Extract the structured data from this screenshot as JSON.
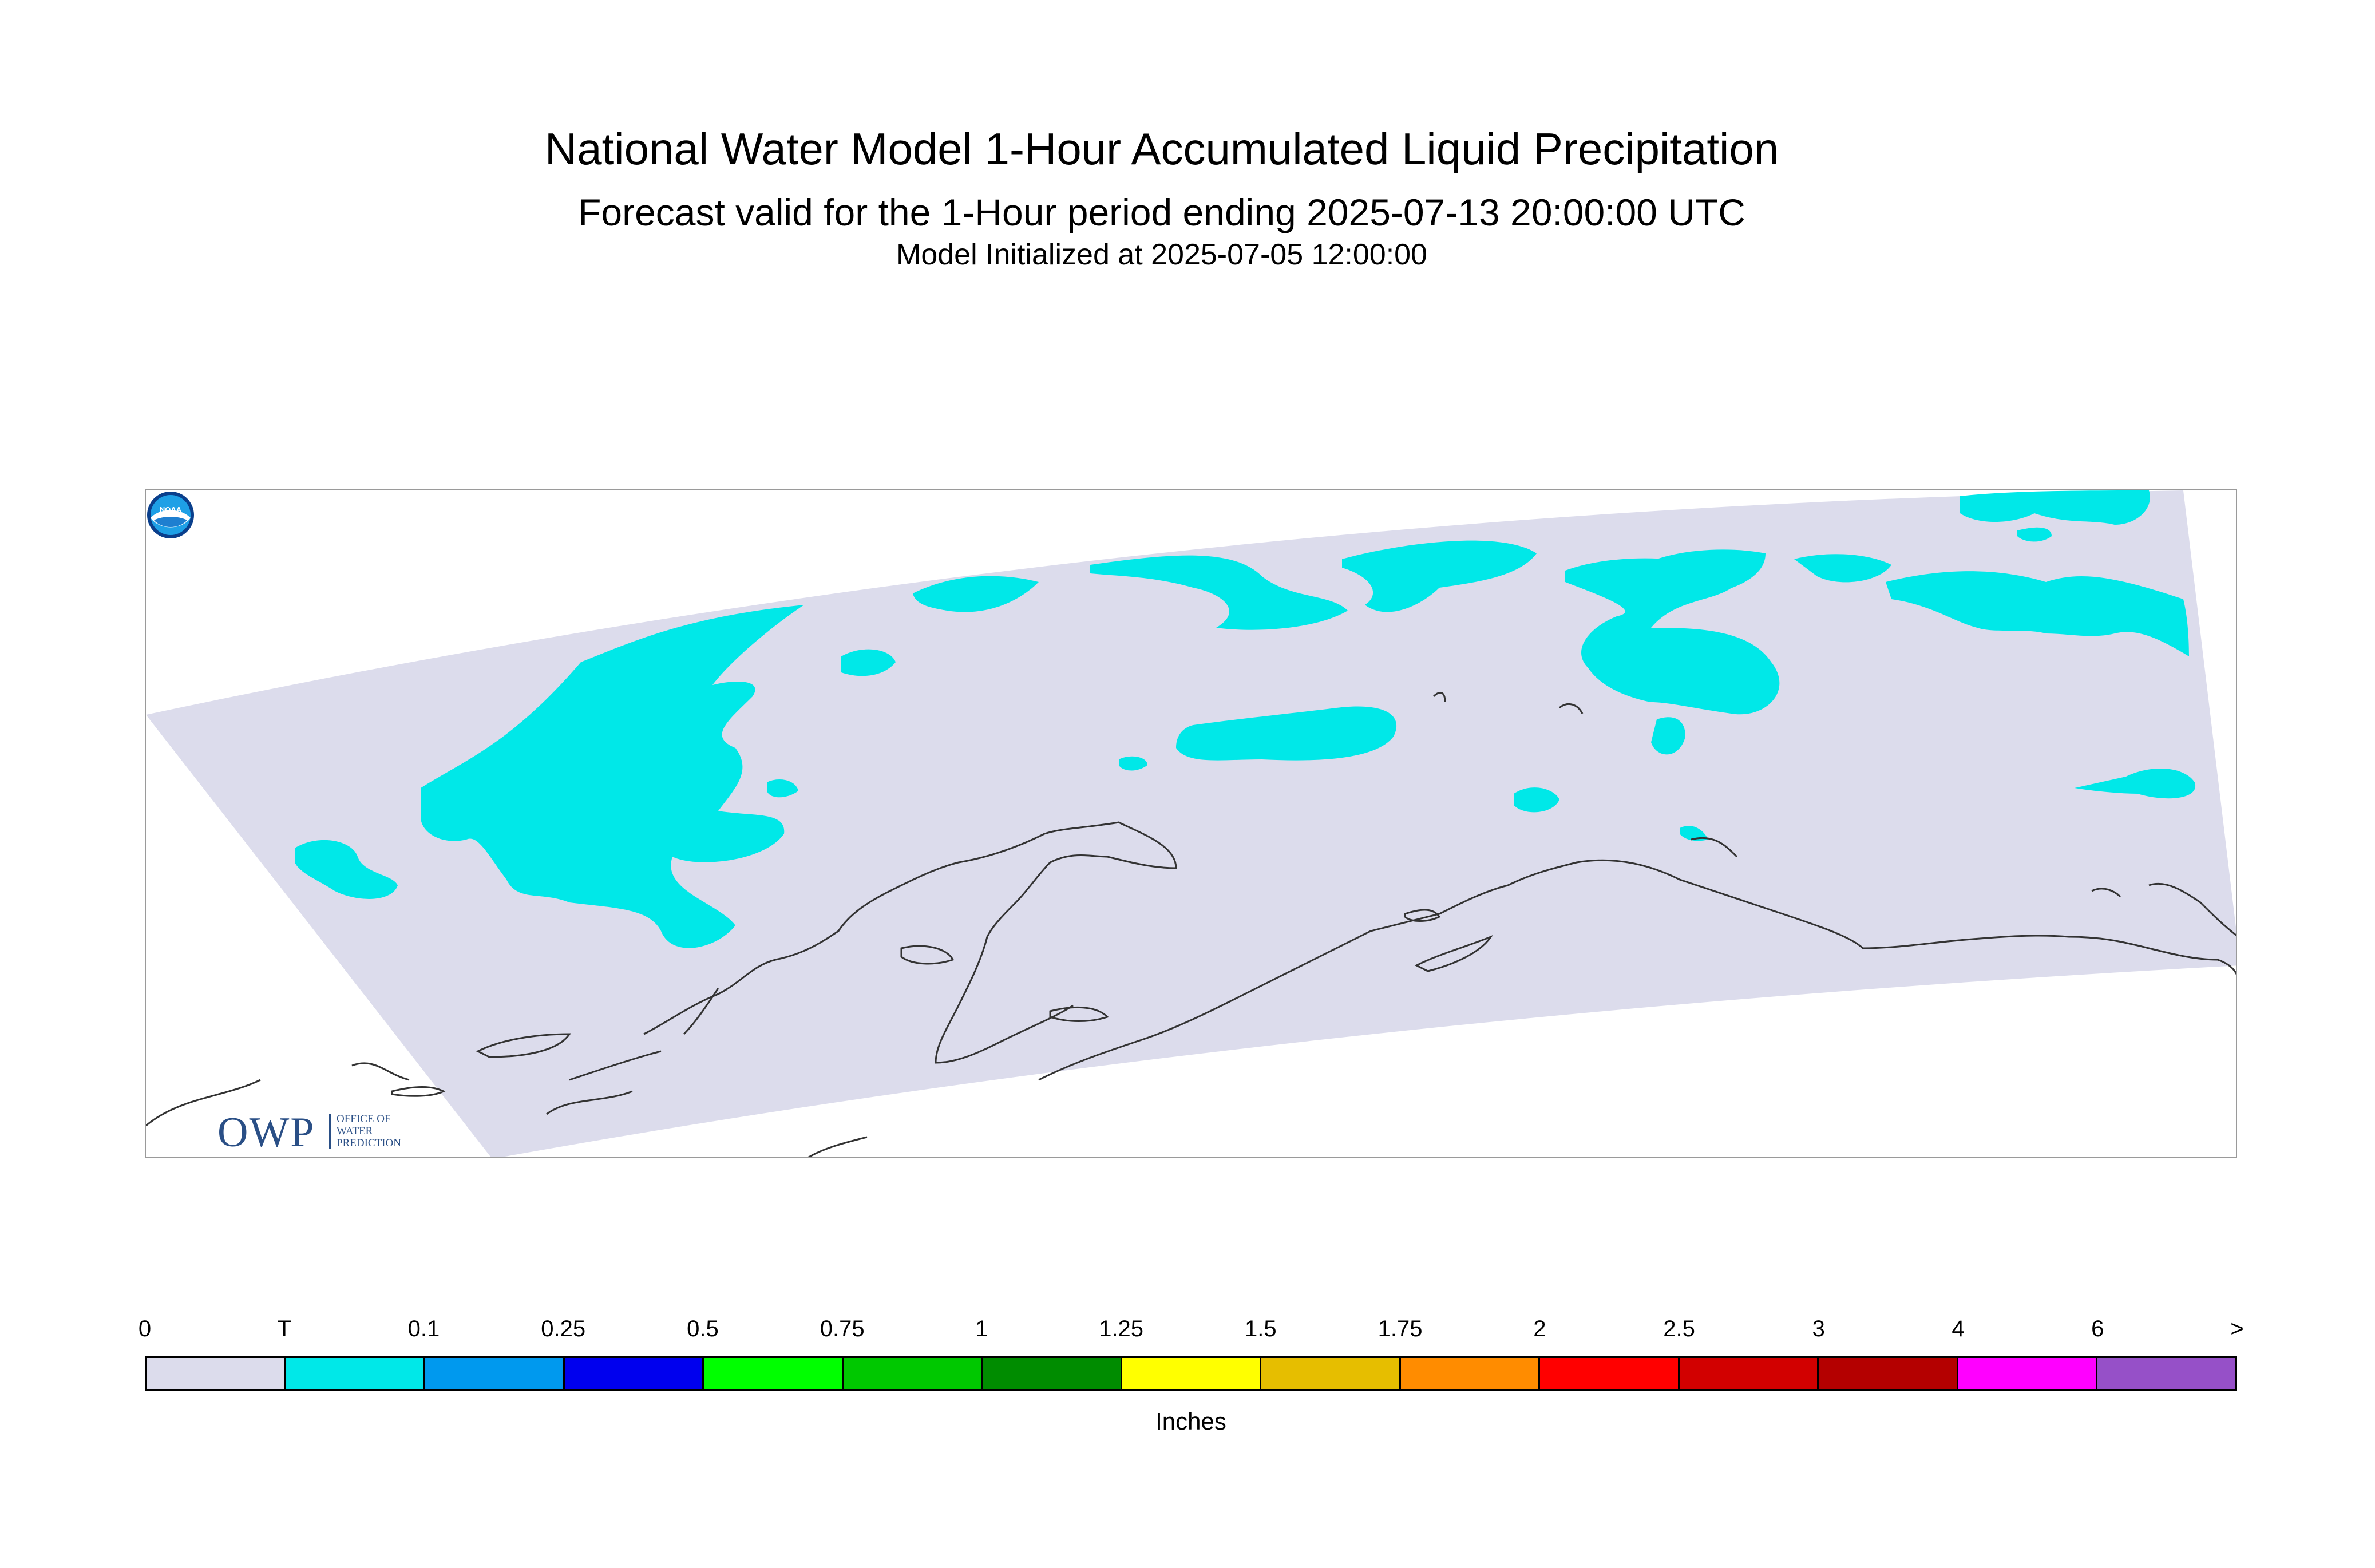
{
  "header": {
    "title": "National Water Model 1-Hour Accumulated Liquid Precipitation",
    "subtitle": "Forecast valid for the 1-Hour period ending 2025-07-13 20:00:00 UTC",
    "init_line": "Model Initialized at 2025-07-05 12:00:00"
  },
  "map": {
    "domain_fill": "#dcdcec",
    "precip_color": "#00e8e8",
    "coastline_color": "#333333"
  },
  "logos": {
    "owp_letters": "OWP",
    "owp_line1": "OFFICE OF",
    "owp_line2": "WATER",
    "owp_line3": "PREDICTION",
    "noaa_text": "NOAA"
  },
  "legend": {
    "ticks": [
      "0",
      "T",
      "0.1",
      "0.25",
      "0.5",
      "0.75",
      "1",
      "1.25",
      "1.5",
      "1.75",
      "2",
      "2.5",
      "3",
      "4",
      "6",
      ">"
    ],
    "colors": [
      "#dcdcec",
      "#00e8e8",
      "#0099ee",
      "#0000ee",
      "#00ff00",
      "#00c800",
      "#008c00",
      "#ffff00",
      "#e6be00",
      "#ff8c00",
      "#ff0000",
      "#d20000",
      "#b40000",
      "#ff00ff",
      "#9650c8"
    ],
    "units": "Inches"
  }
}
